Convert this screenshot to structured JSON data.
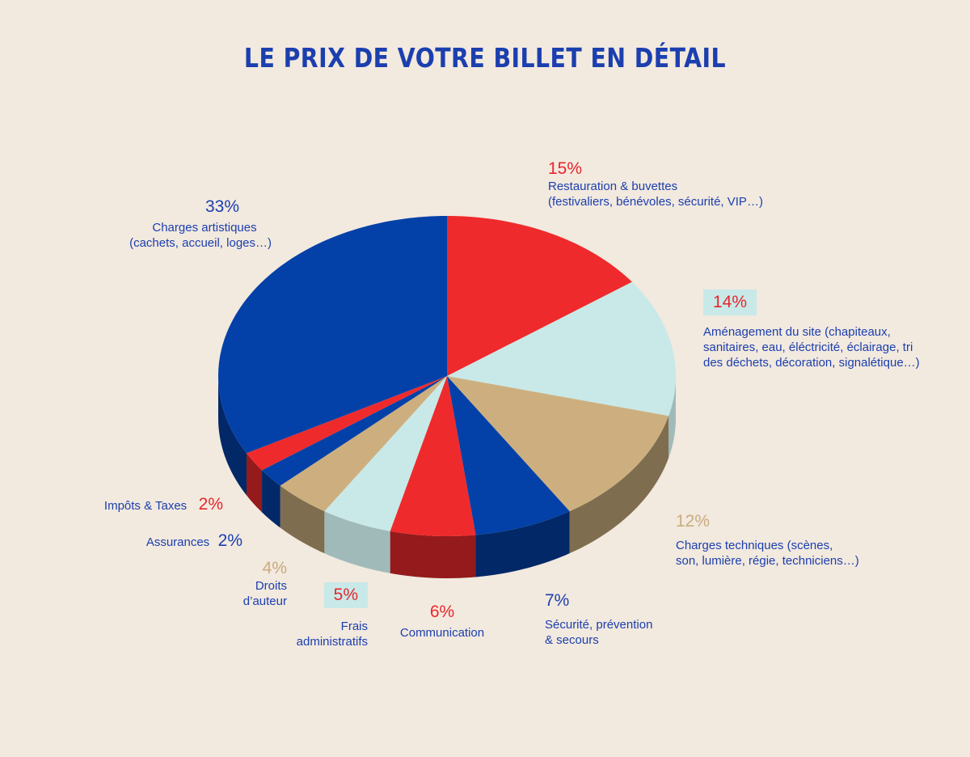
{
  "title": "LE PRIX DE VOTRE BILLET EN DÉTAIL",
  "colors": {
    "background": "#f2e9df",
    "title": "#1b3fae",
    "blue": "#0341a8",
    "red": "#ef2a2c",
    "lightblue": "#c8e9e8",
    "tan": "#cdaf7f"
  },
  "chart_data": {
    "type": "pie",
    "title": "LE PRIX DE VOTRE BILLET EN DÉTAIL",
    "unit": "%",
    "slices": [
      {
        "label": "Restauration & buvettes",
        "detail": "(festivaliers, bénévoles, sécurité, VIP…)",
        "value": 15,
        "value_label": "15%",
        "color": "#ef2a2c"
      },
      {
        "label": "Aménagement du site (chapiteaux,",
        "detail": "sanitaires, eau, éléctricité, éclairage, tri",
        "detail2": "des déchets, décoration, signalétique…)",
        "value": 14,
        "value_label": "14%",
        "color": "#c8e9e8"
      },
      {
        "label": "Charges techniques (scènes,",
        "detail": "son, lumière, régie, techniciens…)",
        "value": 12,
        "value_label": "12%",
        "color": "#cdaf7f"
      },
      {
        "label": "Sécurité, prévention",
        "detail": "& secours",
        "value": 7,
        "value_label": "7%",
        "color": "#0341a8"
      },
      {
        "label": "Communication",
        "detail": "",
        "value": 6,
        "value_label": "6%",
        "color": "#ef2a2c"
      },
      {
        "label": "Frais",
        "detail": "administratifs",
        "value": 5,
        "value_label": "5%",
        "color": "#c8e9e8"
      },
      {
        "label": "Droits",
        "detail": "d’auteur",
        "value": 4,
        "value_label": "4%",
        "color": "#cdaf7f"
      },
      {
        "label": "Assurances",
        "detail": "",
        "value": 2,
        "value_label": "2%",
        "color": "#0341a8"
      },
      {
        "label": "Impôts & Taxes",
        "detail": "",
        "value": 2,
        "value_label": "2%",
        "color": "#ef2a2c"
      },
      {
        "label": "Charges artistiques",
        "detail": "(cachets, accueil, loges…)",
        "value": 33,
        "value_label": "33%",
        "color": "#0341a8"
      }
    ]
  }
}
